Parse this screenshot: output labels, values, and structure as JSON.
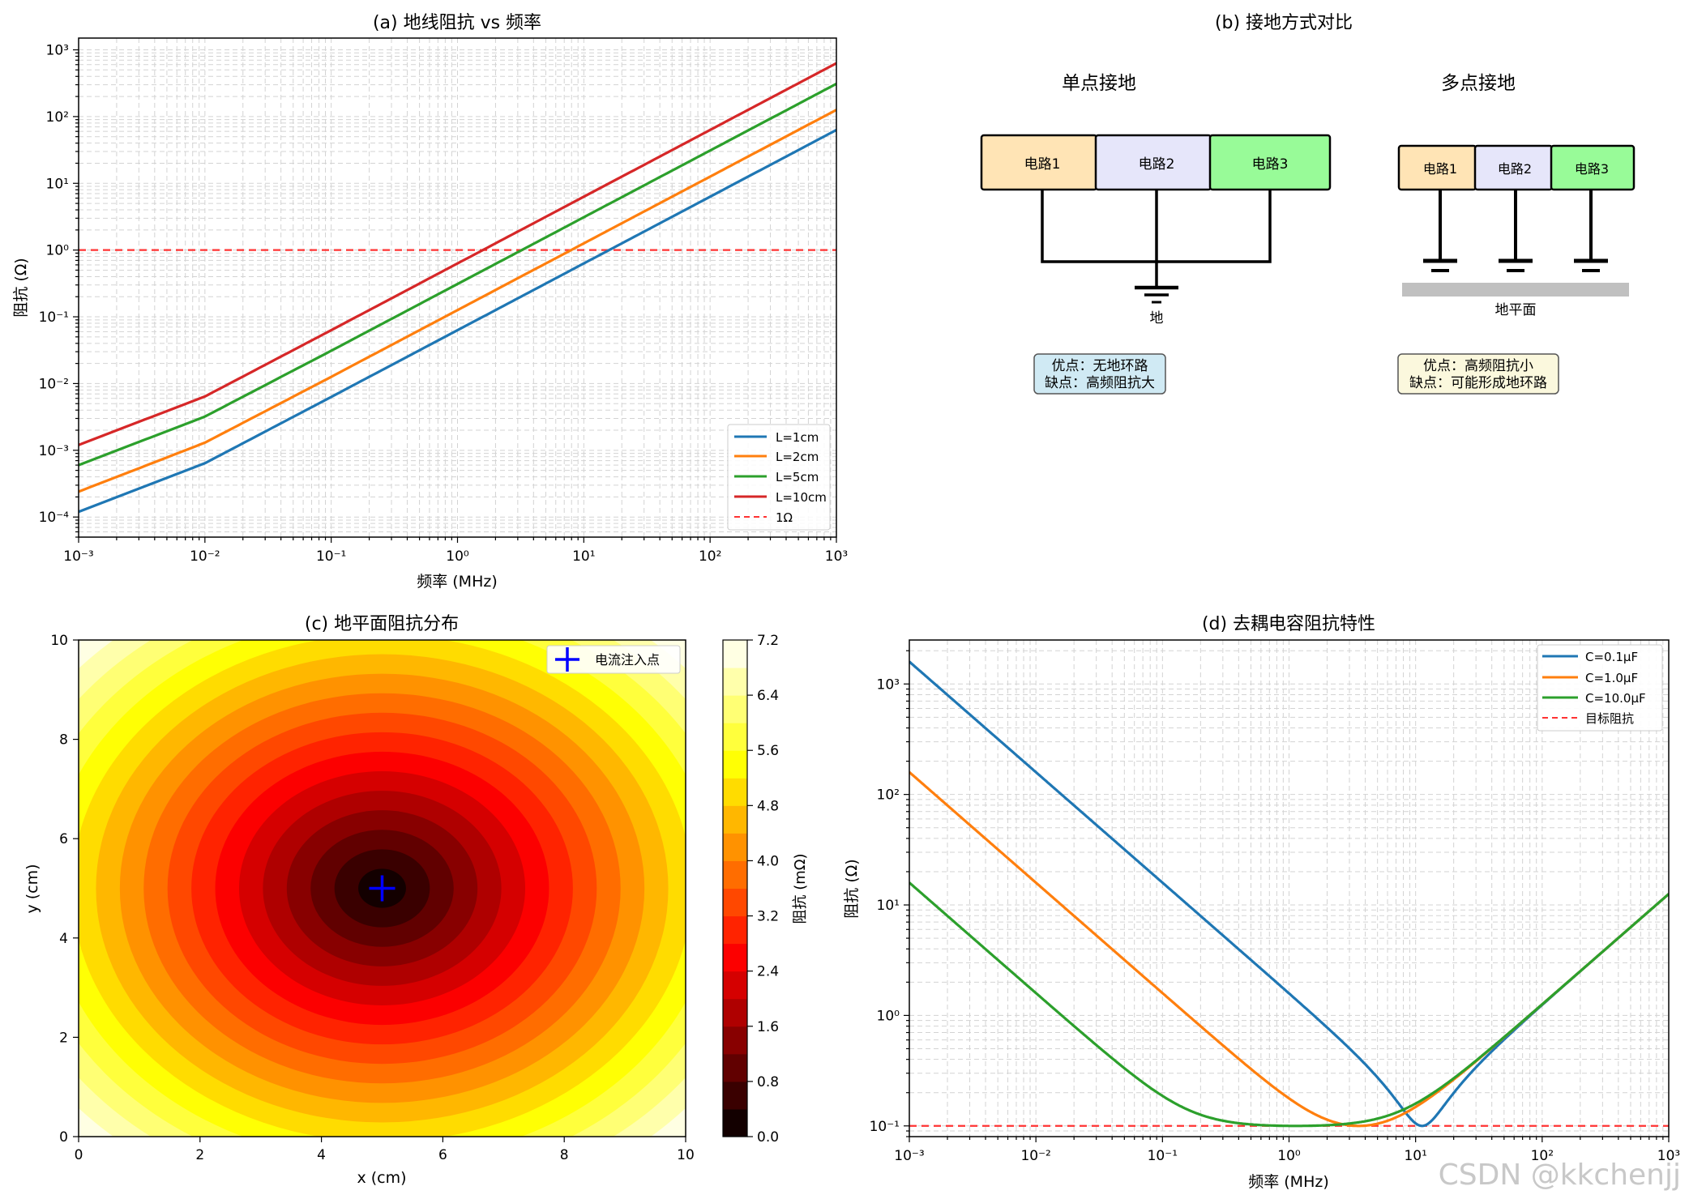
{
  "watermark": "CSDN @kkchenjj",
  "colors": {
    "blue": "#1f77b4",
    "orange": "#ff7f0e",
    "green": "#2ca02c",
    "red": "#d62728",
    "ref": "#ff3333",
    "marker": "#0000ff",
    "circuit1": "#ffe4b5",
    "circuit2": "#e6e6fa",
    "circuit3": "#98fb98",
    "notePro": "#d0eaf4",
    "noteCon": "#fbf8dd",
    "groundPlane": "#c0c0c0"
  },
  "chart_data": [
    {
      "id": "a",
      "type": "line",
      "title": "(a) 地线阻抗 vs 频率",
      "xlabel": "频率 (MHz)",
      "ylabel": "阻抗 (Ω)",
      "xscale": "log",
      "yscale": "log",
      "xlim": [
        0.001,
        1000
      ],
      "ylim": [
        5e-05,
        1500
      ],
      "xtick_labels": [
        "10⁻³",
        "10⁻²",
        "10⁻¹",
        "10⁰",
        "10¹",
        "10²",
        "10³"
      ],
      "ytick_labels": [
        "10⁻⁴",
        "10⁻³",
        "10⁻²",
        "10⁻¹",
        "10⁰",
        "10¹",
        "10²",
        "10³"
      ],
      "grid": true,
      "legend_position": "lower-right",
      "x": [
        0.001,
        0.01,
        0.1,
        1,
        10,
        100,
        1000
      ],
      "series": [
        {
          "name": "L=1cm",
          "values": [
            0.00012,
            0.00064,
            0.0063,
            0.063,
            0.63,
            6.3,
            63
          ],
          "color": "#1f77b4"
        },
        {
          "name": "L=2cm",
          "values": [
            0.00024,
            0.0013,
            0.0126,
            0.126,
            1.26,
            12.6,
            126
          ],
          "color": "#ff7f0e"
        },
        {
          "name": "L=5cm",
          "values": [
            0.0006,
            0.0032,
            0.031,
            0.31,
            3.1,
            31,
            310
          ],
          "color": "#2ca02c"
        },
        {
          "name": "L=10cm",
          "values": [
            0.0012,
            0.0064,
            0.063,
            0.63,
            6.3,
            63,
            630
          ],
          "color": "#d62728"
        }
      ],
      "reference": {
        "name": "1Ω",
        "value": 1,
        "color": "#ff3333"
      }
    },
    {
      "id": "c",
      "type": "heatmap",
      "title": "(c) 地平面阻抗分布",
      "xlabel": "x (cm)",
      "ylabel": "y (cm)",
      "xlim": [
        0,
        10
      ],
      "ylim": [
        0,
        10
      ],
      "xtick_labels": [
        "0",
        "2",
        "4",
        "6",
        "8",
        "10"
      ],
      "ytick_labels": [
        "0",
        "2",
        "4",
        "6",
        "8",
        "10"
      ],
      "center": [
        5,
        5
      ],
      "level_step": 0.4,
      "max_value": 7.2,
      "colorbar_label": "阻抗 (mΩ)",
      "colorbar_ticks": [
        "0.0",
        "0.8",
        "1.6",
        "2.4",
        "3.2",
        "4.0",
        "4.8",
        "5.6",
        "6.4",
        "7.2"
      ],
      "colormap": "hot",
      "marker_label": "电流注入点",
      "legend_position": "top-right"
    },
    {
      "id": "d",
      "type": "line",
      "title": "(d) 去耦电容阻抗特性",
      "xlabel": "频率 (MHz)",
      "ylabel": "阻抗 (Ω)",
      "xscale": "log",
      "yscale": "log",
      "xlim": [
        0.001,
        1000
      ],
      "ylim": [
        0.08,
        2500
      ],
      "xtick_labels": [
        "10⁻³",
        "10⁻²",
        "10⁻¹",
        "10⁰",
        "10¹",
        "10²",
        "10³"
      ],
      "ytick_labels": [
        "10⁻¹",
        "10⁰",
        "10¹",
        "10²",
        "10³"
      ],
      "grid": true,
      "legend_position": "top-right",
      "model": {
        "ESR_ohm": 0.1,
        "ESL_nH": 2
      },
      "series": [
        {
          "name": "C=0.1μF",
          "capacitance_uF": 0.1,
          "color": "#1f77b4"
        },
        {
          "name": "C=1.0μF",
          "capacitance_uF": 1.0,
          "color": "#ff7f0e"
        },
        {
          "name": "C=10.0μF",
          "capacitance_uF": 10.0,
          "color": "#2ca02c"
        }
      ],
      "reference": {
        "name": "目标阻抗",
        "value": 0.1,
        "color": "#ff3333"
      }
    }
  ],
  "diagram": {
    "title": "(b) 接地方式对比",
    "single": {
      "heading": "单点接地",
      "circuits": [
        "电路1",
        "电路2",
        "电路3"
      ],
      "ground_label": "地",
      "pros": "优点：无地环路",
      "cons": "缺点：高频阻抗大"
    },
    "multi": {
      "heading": "多点接地",
      "circuits": [
        "电路1",
        "电路2",
        "电路3"
      ],
      "plane_label": "地平面",
      "pros": "优点：高频阻抗小",
      "cons": "缺点：可能形成地环路"
    }
  }
}
